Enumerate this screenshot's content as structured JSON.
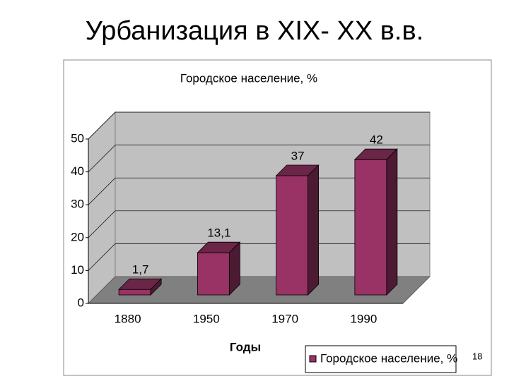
{
  "slide": {
    "title": "Урбанизация в XIX- XX в.в.",
    "page_number": 18
  },
  "chart_data": {
    "type": "bar3d",
    "title": "Городское население, %",
    "categories": [
      "1880",
      "1950",
      "1970",
      "1990"
    ],
    "series": [
      {
        "name": "Городское население, %",
        "color": "#993366",
        "values": [
          1.7,
          13.1,
          37,
          42
        ],
        "value_labels": [
          "1,7",
          "13,1",
          "37",
          "42"
        ]
      }
    ],
    "x_label": "Годы",
    "ylim": [
      0,
      50
    ],
    "yticks": [
      0,
      10,
      20,
      30,
      40,
      50
    ],
    "grid": true,
    "legend": "bottom-right"
  }
}
